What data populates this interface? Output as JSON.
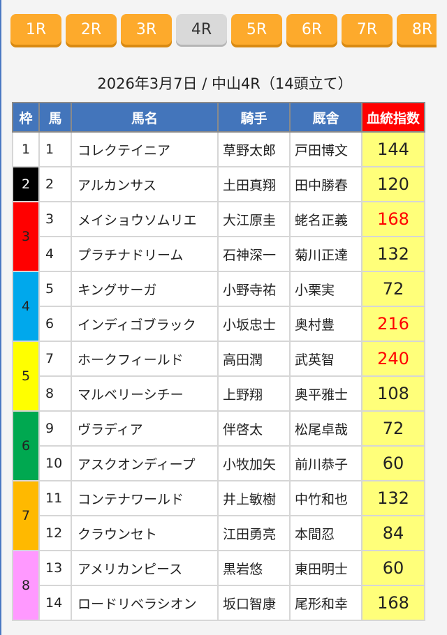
{
  "race_nav": [
    {
      "label": "1R",
      "active": false
    },
    {
      "label": "2R",
      "active": false
    },
    {
      "label": "3R",
      "active": false
    },
    {
      "label": "4R",
      "active": true
    },
    {
      "label": "5R",
      "active": false
    },
    {
      "label": "6R",
      "active": false
    },
    {
      "label": "7R",
      "active": false
    },
    {
      "label": "8R",
      "active": false
    }
  ],
  "title": "2026年3月7日 / 中山4R（14頭立て）",
  "table": {
    "headers": [
      "枠",
      "馬",
      "馬名",
      "騎手",
      "厩舎",
      "血統指数"
    ],
    "waku": [
      {
        "label": "1",
        "color": "#ffffff",
        "text_color": "#222222",
        "rows": 1
      },
      {
        "label": "2",
        "color": "#000000",
        "text_color": "#ffffff",
        "rows": 1
      },
      {
        "label": "3",
        "color": "#ff0000",
        "text_color": "#222222",
        "rows": 2
      },
      {
        "label": "4",
        "color": "#00a8ec",
        "text_color": "#222222",
        "rows": 2
      },
      {
        "label": "5",
        "color": "#ffff00",
        "text_color": "#222222",
        "rows": 2
      },
      {
        "label": "6",
        "color": "#00a850",
        "text_color": "#222222",
        "rows": 2
      },
      {
        "label": "7",
        "color": "#ffb900",
        "text_color": "#222222",
        "rows": 2
      },
      {
        "label": "8",
        "color": "#ff99ff",
        "text_color": "#222222",
        "rows": 2
      }
    ],
    "rows": [
      {
        "num": "1",
        "name": "コレクテイニア",
        "jockey": "草野太郎",
        "trainer": "戸田博文",
        "score": "144",
        "highlight": false
      },
      {
        "num": "2",
        "name": "アルカンサス",
        "jockey": "土田真翔",
        "trainer": "田中勝春",
        "score": "120",
        "highlight": false
      },
      {
        "num": "3",
        "name": "メイショウソムリエ",
        "jockey": "大江原圭",
        "trainer": "蛯名正義",
        "score": "168",
        "highlight": true
      },
      {
        "num": "4",
        "name": "プラチナドリーム",
        "jockey": "石神深一",
        "trainer": "菊川正達",
        "score": "132",
        "highlight": false
      },
      {
        "num": "5",
        "name": "キングサーガ",
        "jockey": "小野寺祐",
        "trainer": "小栗実",
        "score": "72",
        "highlight": false
      },
      {
        "num": "6",
        "name": "インディゴブラック",
        "jockey": "小坂忠士",
        "trainer": "奥村豊",
        "score": "216",
        "highlight": true
      },
      {
        "num": "7",
        "name": "ホークフィールド",
        "jockey": "高田潤",
        "trainer": "武英智",
        "score": "240",
        "highlight": true
      },
      {
        "num": "8",
        "name": "マルベリーシチー",
        "jockey": "上野翔",
        "trainer": "奥平雅士",
        "score": "108",
        "highlight": false
      },
      {
        "num": "9",
        "name": "ヴラディア",
        "jockey": "伴啓太",
        "trainer": "松尾卓哉",
        "score": "72",
        "highlight": false
      },
      {
        "num": "10",
        "name": "アスクオンディープ",
        "jockey": "小牧加矢",
        "trainer": "前川恭子",
        "score": "60",
        "highlight": false
      },
      {
        "num": "11",
        "name": "コンテナワールド",
        "jockey": "井上敏樹",
        "trainer": "中竹和也",
        "score": "132",
        "highlight": false
      },
      {
        "num": "12",
        "name": "クラウンセト",
        "jockey": "江田勇亮",
        "trainer": "本間忍",
        "score": "84",
        "highlight": false
      },
      {
        "num": "13",
        "name": "アメリカンピース",
        "jockey": "黒岩悠",
        "trainer": "東田明士",
        "score": "60",
        "highlight": false
      },
      {
        "num": "14",
        "name": "ロードリベラシオン",
        "jockey": "坂口智康",
        "trainer": "尾形和幸",
        "score": "168",
        "highlight": false
      }
    ]
  }
}
